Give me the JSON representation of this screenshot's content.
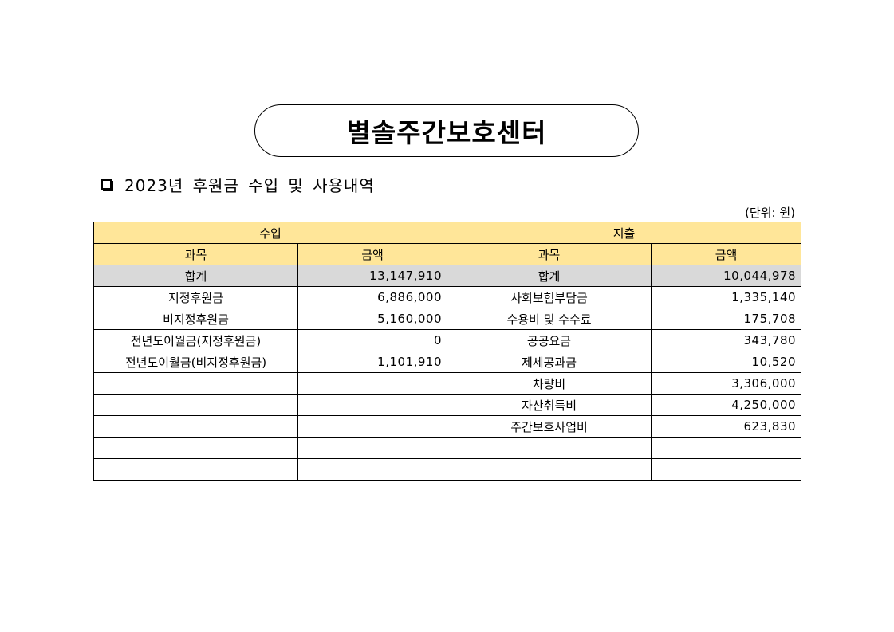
{
  "document": {
    "title": "별솔주간보호센터",
    "section_heading": "2023년 후원금 수입 및 사용내역",
    "unit_note": "(단위: 원)"
  },
  "table": {
    "income_header": "수입",
    "expense_header": "지출",
    "col_item": "과목",
    "col_amount": "금액",
    "total": {
      "income_label": "합계",
      "income_amount": "13,147,910",
      "expense_label": "합계",
      "expense_amount": "10,044,978"
    },
    "rows": [
      {
        "income_item": "지정후원금",
        "income_amount": "6,886,000",
        "expense_item": "사회보험부담금",
        "expense_amount": "1,335,140"
      },
      {
        "income_item": "비지정후원금",
        "income_amount": "5,160,000",
        "expense_item": "수용비 및 수수료",
        "expense_amount": "175,708"
      },
      {
        "income_item": "전년도이월금(지정후원금)",
        "income_amount": "0",
        "expense_item": "공공요금",
        "expense_amount": "343,780"
      },
      {
        "income_item": "전년도이월금(비지정후원금)",
        "income_amount": "1,101,910",
        "expense_item": "제세공과금",
        "expense_amount": "10,520"
      },
      {
        "income_item": "",
        "income_amount": "",
        "expense_item": "차량비",
        "expense_amount": "3,306,000"
      },
      {
        "income_item": "",
        "income_amount": "",
        "expense_item": "자산취득비",
        "expense_amount": "4,250,000"
      },
      {
        "income_item": "",
        "income_amount": "",
        "expense_item": "주간보호사업비",
        "expense_amount": "623,830"
      },
      {
        "income_item": "",
        "income_amount": "",
        "expense_item": "",
        "expense_amount": ""
      },
      {
        "income_item": "",
        "income_amount": "",
        "expense_item": "",
        "expense_amount": ""
      }
    ]
  },
  "colors": {
    "header_fill": "#ffe699",
    "total_fill": "#d9d9d9"
  }
}
